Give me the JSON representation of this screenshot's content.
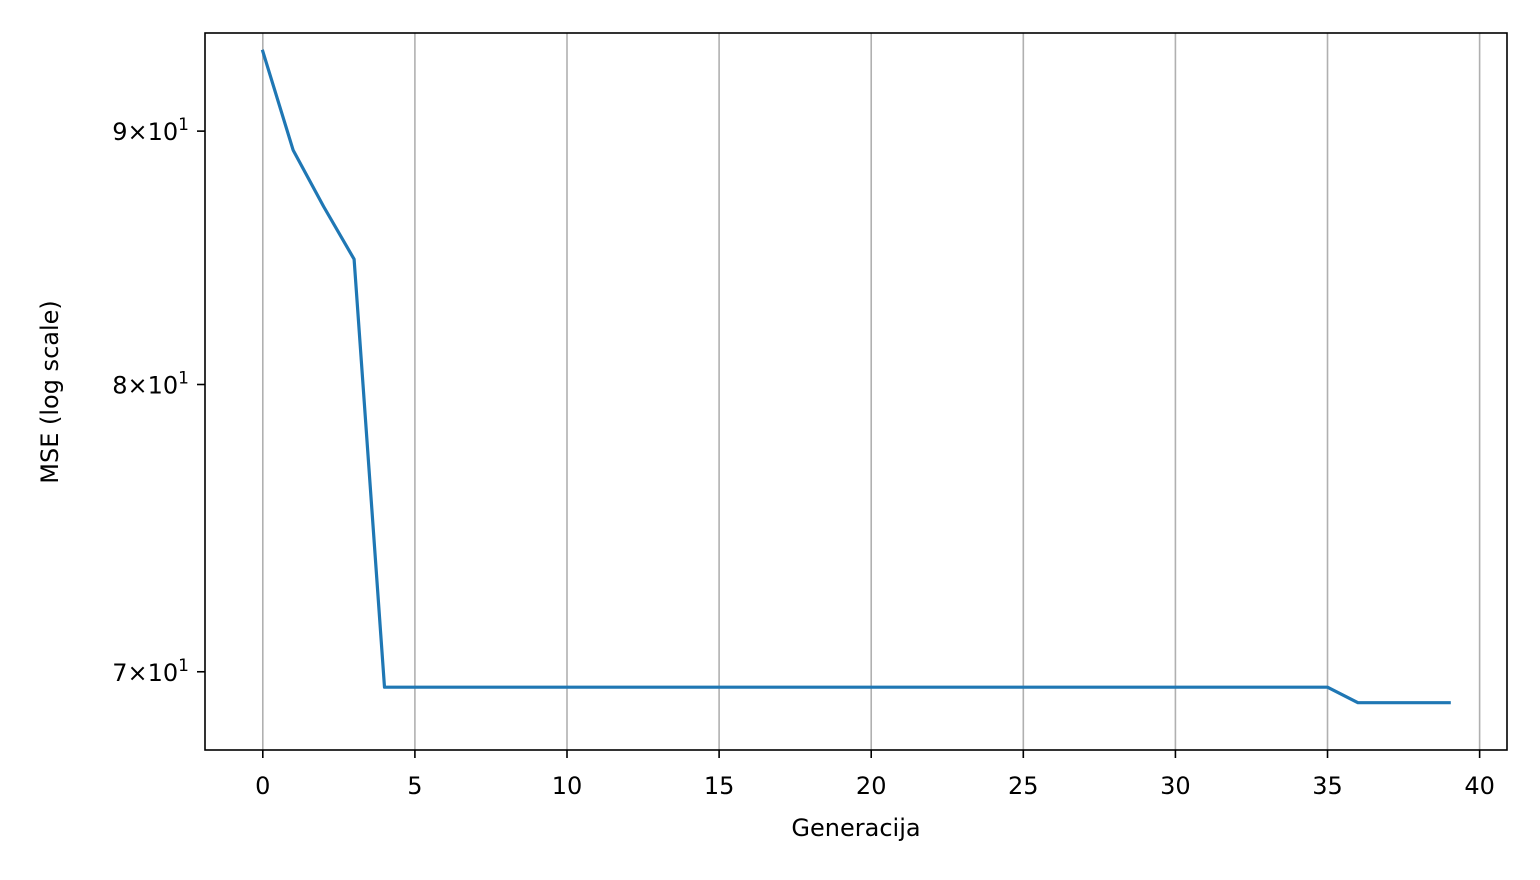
{
  "chart_data": {
    "type": "line",
    "title": "",
    "xlabel": "Generacija",
    "ylabel": "MSE (log scale)",
    "yscale": "log",
    "grid": "x-only",
    "xlim": [
      -1.9,
      40.9
    ],
    "ylim": [
      67.5,
      94.2
    ],
    "x_ticks": [
      0,
      5,
      10,
      15,
      20,
      25,
      30,
      35,
      40
    ],
    "x_tick_labels": [
      "0",
      "5",
      "10",
      "15",
      "20",
      "25",
      "30",
      "35",
      "40"
    ],
    "y_ticks": [
      {
        "value": 90,
        "mantissa": "9",
        "base": "10",
        "exp": "1"
      },
      {
        "value": 80,
        "mantissa": "8",
        "base": "10",
        "exp": "1"
      },
      {
        "value": 70,
        "mantissa": "7",
        "base": "10",
        "exp": "1"
      }
    ],
    "series": [
      {
        "color": "#1f77b4",
        "x": [
          0,
          1,
          2,
          3,
          4,
          5,
          6,
          7,
          8,
          9,
          10,
          11,
          12,
          13,
          14,
          15,
          16,
          17,
          18,
          19,
          20,
          21,
          22,
          23,
          24,
          25,
          26,
          27,
          28,
          29,
          30,
          31,
          32,
          33,
          34,
          35,
          36,
          37,
          38,
          39
        ],
        "y": [
          93.4,
          89.2,
          86.9,
          84.8,
          69.5,
          69.5,
          69.5,
          69.5,
          69.5,
          69.5,
          69.5,
          69.5,
          69.5,
          69.5,
          69.5,
          69.5,
          69.5,
          69.5,
          69.5,
          69.5,
          69.5,
          69.5,
          69.5,
          69.5,
          69.5,
          69.5,
          69.5,
          69.5,
          69.5,
          69.5,
          69.5,
          69.5,
          69.5,
          69.5,
          69.5,
          69.5,
          69.0,
          69.0,
          69.0,
          69.0
        ]
      }
    ]
  }
}
